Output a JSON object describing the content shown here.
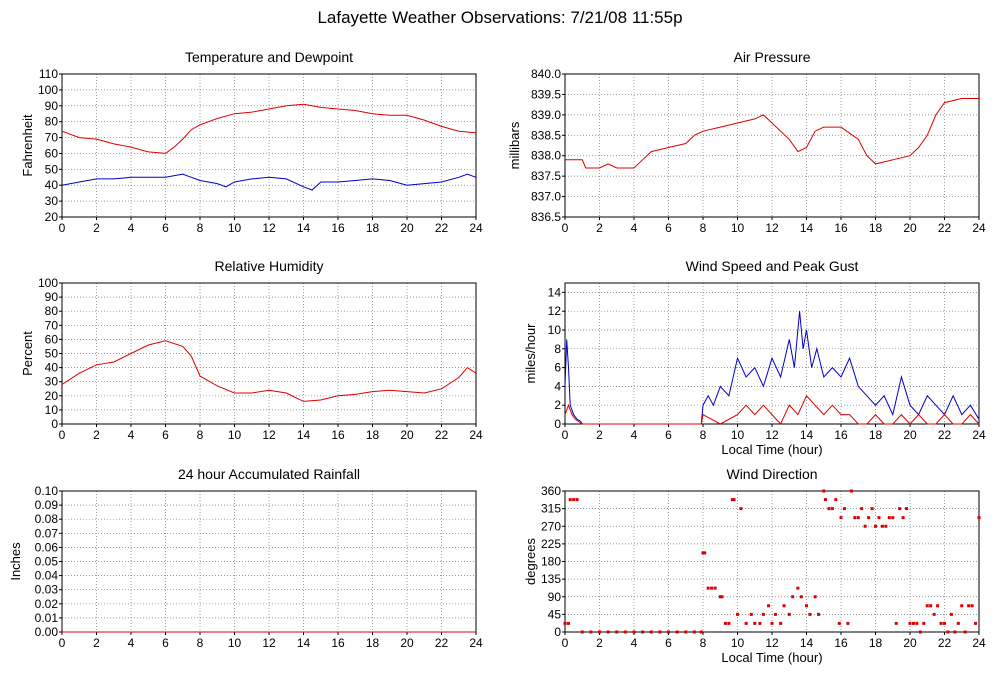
{
  "page": {
    "title": "Lafayette Weather Observations: 7/21/08 11:55p"
  },
  "colors": {
    "red": "#dd0000",
    "blue": "#0000cc",
    "grid": "#777777",
    "axis": "#000000"
  },
  "chart_data": [
    {
      "id": "temp",
      "type": "line",
      "title": "Temperature and Dewpoint",
      "xlabel": "",
      "ylabel": "Fahrenheit",
      "xlim": [
        0,
        24
      ],
      "xticks": [
        0,
        2,
        4,
        6,
        8,
        10,
        12,
        14,
        16,
        18,
        20,
        22,
        24
      ],
      "ylim": [
        20,
        110
      ],
      "yticks": [
        20,
        30,
        40,
        50,
        60,
        70,
        80,
        90,
        100,
        110
      ],
      "grid": true,
      "series": [
        {
          "color": "red",
          "x": [
            0,
            1,
            2,
            3,
            4,
            5,
            6,
            6.5,
            7,
            7.5,
            8,
            9,
            10,
            11,
            12,
            13,
            14,
            15,
            16,
            17,
            18,
            19,
            20,
            21,
            22,
            23,
            24
          ],
          "y": [
            74,
            70,
            69,
            66,
            64,
            61,
            60,
            64,
            69,
            75,
            78,
            82,
            85,
            86,
            88,
            90,
            91,
            89,
            88,
            87,
            85,
            84,
            84,
            81,
            77,
            74,
            73
          ]
        },
        {
          "color": "blue",
          "x": [
            0,
            1,
            2,
            3,
            4,
            5,
            6,
            7,
            7.5,
            8,
            9,
            9.5,
            10,
            11,
            12,
            13,
            14,
            14.5,
            15,
            16,
            17,
            18,
            19,
            20,
            21,
            22,
            23,
            23.5,
            24
          ],
          "y": [
            40,
            42,
            44,
            44,
            45,
            45,
            45,
            47,
            45,
            43,
            41,
            39,
            42,
            44,
            45,
            44,
            39,
            37,
            42,
            42,
            43,
            44,
            43,
            40,
            41,
            42,
            45,
            47,
            45
          ]
        }
      ]
    },
    {
      "id": "pressure",
      "type": "line",
      "title": "Air Pressure",
      "xlabel": "",
      "ylabel": "millibars",
      "xlim": [
        0,
        24
      ],
      "xticks": [
        0,
        2,
        4,
        6,
        8,
        10,
        12,
        14,
        16,
        18,
        20,
        22,
        24
      ],
      "ylim": [
        836.5,
        840.0
      ],
      "yticks": [
        836.5,
        837.0,
        837.5,
        838.0,
        838.5,
        839.0,
        839.5,
        840.0
      ],
      "yformat": 1,
      "grid": true,
      "series": [
        {
          "color": "red",
          "x": [
            0,
            1,
            1.2,
            2,
            2.5,
            3,
            4,
            4.5,
            5,
            6,
            7,
            7.5,
            8,
            9,
            10,
            11,
            11.5,
            12,
            13,
            13.5,
            14,
            14.5,
            15,
            16,
            17,
            17.5,
            18,
            19,
            20,
            20.5,
            21,
            21.5,
            22,
            23,
            24
          ],
          "y": [
            837.9,
            837.9,
            837.7,
            837.7,
            837.8,
            837.7,
            837.7,
            837.9,
            838.1,
            838.2,
            838.3,
            838.5,
            838.6,
            838.7,
            838.8,
            838.9,
            839.0,
            838.8,
            838.4,
            838.1,
            838.2,
            838.6,
            838.7,
            838.7,
            838.4,
            838.0,
            837.8,
            837.9,
            838.0,
            838.2,
            838.5,
            839.0,
            839.3,
            839.4,
            839.4
          ]
        }
      ]
    },
    {
      "id": "humidity",
      "type": "line",
      "title": "Relative Humidity",
      "xlabel": "",
      "ylabel": "Percent",
      "xlim": [
        0,
        24
      ],
      "xticks": [
        0,
        2,
        4,
        6,
        8,
        10,
        12,
        14,
        16,
        18,
        20,
        22,
        24
      ],
      "ylim": [
        0,
        100
      ],
      "yticks": [
        0,
        10,
        20,
        30,
        40,
        50,
        60,
        70,
        80,
        90,
        100
      ],
      "grid": true,
      "series": [
        {
          "color": "red",
          "x": [
            0,
            1,
            2,
            3,
            4,
            5,
            6,
            7,
            7.5,
            8,
            9,
            10,
            11,
            12,
            13,
            14,
            15,
            16,
            17,
            18,
            19,
            20,
            21,
            22,
            23,
            23.5,
            24
          ],
          "y": [
            28,
            36,
            42,
            44,
            50,
            56,
            59,
            55,
            48,
            34,
            27,
            22,
            22,
            24,
            22,
            16,
            17,
            20,
            21,
            23,
            24,
            23,
            22,
            25,
            33,
            40,
            36
          ]
        }
      ]
    },
    {
      "id": "wind-speed",
      "type": "line",
      "title": "Wind Speed and Peak Gust",
      "xlabel": "Local Time (hour)",
      "ylabel": "miles/hour",
      "xlim": [
        0,
        24
      ],
      "xticks": [
        0,
        2,
        4,
        6,
        8,
        10,
        12,
        14,
        16,
        18,
        20,
        22,
        24
      ],
      "ylim": [
        0,
        15
      ],
      "yticks": [
        0,
        2,
        4,
        6,
        8,
        10,
        12,
        14
      ],
      "grid": true,
      "series": [
        {
          "color": "blue",
          "x": [
            0,
            0.1,
            0.2,
            0.3,
            0.5,
            0.7,
            0.9,
            1,
            2,
            4,
            6,
            7.9,
            8,
            8.3,
            8.6,
            9,
            9.5,
            10,
            10.5,
            11,
            11.5,
            12,
            12.5,
            13,
            13.3,
            13.6,
            13.8,
            14,
            14.3,
            14.6,
            15,
            15.5,
            16,
            16.5,
            17,
            17.5,
            18,
            18.5,
            19,
            19.5,
            20,
            20.5,
            21,
            21.5,
            22,
            22.5,
            23,
            23.5,
            24
          ],
          "y": [
            4,
            9,
            6,
            2,
            1,
            0.5,
            0.3,
            0,
            0,
            0,
            0,
            0,
            2,
            3,
            2,
            4,
            3,
            7,
            5,
            6,
            4,
            7,
            5,
            9,
            6,
            12,
            8,
            10,
            6,
            8,
            5,
            6,
            5,
            7,
            4,
            3,
            2,
            3,
            1,
            5,
            2,
            1,
            3,
            2,
            1,
            3,
            1,
            2,
            0.5
          ]
        },
        {
          "color": "red",
          "x": [
            0,
            0.2,
            0.4,
            0.6,
            1,
            7.9,
            8,
            9,
            10,
            10.5,
            11,
            11.5,
            12,
            12.5,
            13,
            13.5,
            14,
            14.5,
            15,
            15.5,
            16,
            16.5,
            17,
            17.5,
            18,
            18.5,
            19,
            19.5,
            20,
            20.5,
            21,
            21.5,
            22,
            22.5,
            23,
            23.5,
            24
          ],
          "y": [
            1,
            2,
            1,
            0.5,
            0,
            0,
            1,
            0,
            1,
            2,
            1,
            2,
            1,
            0,
            2,
            1,
            3,
            2,
            1,
            2,
            1,
            1,
            0,
            0,
            1,
            0,
            0,
            1,
            0,
            1,
            0,
            0,
            1,
            0,
            0,
            1,
            0
          ]
        }
      ]
    },
    {
      "id": "rain",
      "type": "line",
      "title": "24 hour Accumulated Rainfall",
      "xlabel": "",
      "ylabel": "Inches",
      "xlim": [
        0,
        24
      ],
      "xticks": [
        0,
        2,
        4,
        6,
        8,
        10,
        12,
        14,
        16,
        18,
        20,
        22,
        24
      ],
      "ylim": [
        0,
        0.1
      ],
      "yticks": [
        0,
        0.01,
        0.02,
        0.03,
        0.04,
        0.05,
        0.06,
        0.07,
        0.08,
        0.09,
        0.1
      ],
      "yformat": 2,
      "grid": true,
      "series": [
        {
          "color": "red",
          "x": [
            0,
            24
          ],
          "y": [
            0,
            0
          ]
        }
      ]
    },
    {
      "id": "wind-dir",
      "type": "scatter",
      "title": "Wind Direction",
      "xlabel": "Local Time (hour)",
      "ylabel": "degrees",
      "xlim": [
        0,
        24
      ],
      "xticks": [
        0,
        2,
        4,
        6,
        8,
        10,
        12,
        14,
        16,
        18,
        20,
        22,
        24
      ],
      "ylim": [
        0,
        360
      ],
      "yticks": [
        0,
        45,
        90,
        135,
        180,
        225,
        270,
        315,
        360
      ],
      "grid": true,
      "series": [
        {
          "color": "red",
          "x": [
            0,
            0.2,
            0.3,
            0.5,
            0.7,
            1,
            1.5,
            2,
            2.5,
            3,
            3.5,
            4,
            4.5,
            5,
            5.5,
            6,
            6.5,
            7,
            7.5,
            7.9,
            8,
            8.1,
            8.3,
            8.5,
            8.7,
            9,
            9.1,
            9.3,
            9.5,
            9.7,
            9.8,
            10,
            10.2,
            10.5,
            10.8,
            11,
            11.3,
            11.5,
            11.8,
            12,
            12.2,
            12.5,
            12.7,
            13,
            13.2,
            13.5,
            13.7,
            14,
            14.2,
            14.5,
            14.7,
            15,
            15.1,
            15.3,
            15.5,
            15.7,
            15.9,
            16,
            16.2,
            16.4,
            16.6,
            16.8,
            17,
            17.2,
            17.4,
            17.6,
            17.8,
            18,
            18.2,
            18.4,
            18.6,
            18.8,
            19,
            19.2,
            19.4,
            19.6,
            19.8,
            20,
            20.2,
            20.4,
            20.6,
            20.8,
            21,
            21.2,
            21.4,
            21.6,
            21.8,
            22,
            22.2,
            22.4,
            22.6,
            22.8,
            23,
            23.2,
            23.4,
            23.6,
            23.8,
            24
          ],
          "y": [
            22,
            22,
            338,
            338,
            338,
            0,
            0,
            0,
            0,
            0,
            0,
            0,
            0,
            0,
            0,
            0,
            0,
            0,
            0,
            0,
            202,
            202,
            112,
            112,
            112,
            90,
            90,
            22,
            22,
            338,
            338,
            45,
            315,
            22,
            45,
            22,
            22,
            45,
            67,
            22,
            45,
            22,
            67,
            45,
            90,
            112,
            90,
            67,
            45,
            90,
            45,
            360,
            338,
            315,
            315,
            338,
            22,
            292,
            315,
            22,
            360,
            292,
            292,
            315,
            270,
            292,
            315,
            270,
            292,
            270,
            270,
            292,
            292,
            22,
            315,
            292,
            315,
            22,
            22,
            22,
            0,
            22,
            67,
            67,
            45,
            67,
            22,
            22,
            0,
            45,
            0,
            22,
            67,
            0,
            67,
            67,
            22,
            292
          ]
        }
      ]
    }
  ]
}
